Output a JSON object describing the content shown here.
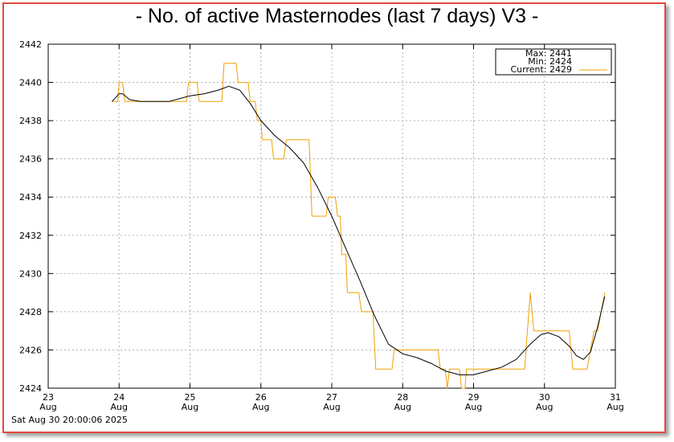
{
  "page": {
    "title": "- No. of active Masternodes (last 7 days) V3 -",
    "timestamp": "Sat Aug 30 20:00:06 2025"
  },
  "legend": {
    "max_label": "Max: 2441",
    "min_label": "Min: 2424",
    "current_label": "Current: 2429"
  },
  "colors": {
    "raw_line": "#f0a000",
    "smooth_line": "#000000",
    "frame_border": "#e0483e",
    "grid": "#b0b0b0"
  },
  "chart_data": {
    "type": "line",
    "title": "- No. of active Masternodes (last 7 days) V3 -",
    "xlabel": "",
    "ylabel": "",
    "xlim": [
      23,
      31
    ],
    "ylim": [
      2424,
      2442
    ],
    "grid": true,
    "legend_position": "top-right",
    "x_ticks": [
      {
        "value": 23,
        "day": "23",
        "month": "Aug"
      },
      {
        "value": 24,
        "day": "24",
        "month": "Aug"
      },
      {
        "value": 25,
        "day": "25",
        "month": "Aug"
      },
      {
        "value": 26,
        "day": "26",
        "month": "Aug"
      },
      {
        "value": 27,
        "day": "27",
        "month": "Aug"
      },
      {
        "value": 28,
        "day": "28",
        "month": "Aug"
      },
      {
        "value": 29,
        "day": "29",
        "month": "Aug"
      },
      {
        "value": 30,
        "day": "30",
        "month": "Aug"
      },
      {
        "value": 31,
        "day": "31",
        "month": "Aug"
      }
    ],
    "y_ticks": [
      2424,
      2426,
      2428,
      2430,
      2432,
      2434,
      2436,
      2438,
      2440,
      2442
    ],
    "series": [
      {
        "name": "Current",
        "points": [
          [
            23.9,
            2439
          ],
          [
            23.98,
            2439
          ],
          [
            24.0,
            2440
          ],
          [
            24.05,
            2440
          ],
          [
            24.08,
            2439
          ],
          [
            24.25,
            2439
          ],
          [
            24.5,
            2439
          ],
          [
            24.75,
            2439
          ],
          [
            24.95,
            2439
          ],
          [
            24.98,
            2440
          ],
          [
            25.1,
            2440
          ],
          [
            25.13,
            2439
          ],
          [
            25.45,
            2439
          ],
          [
            25.48,
            2441
          ],
          [
            25.65,
            2441
          ],
          [
            25.68,
            2440
          ],
          [
            25.82,
            2440
          ],
          [
            25.85,
            2439
          ],
          [
            25.92,
            2439
          ],
          [
            25.95,
            2438
          ],
          [
            26.0,
            2438
          ],
          [
            26.02,
            2437
          ],
          [
            26.15,
            2437
          ],
          [
            26.18,
            2436
          ],
          [
            26.32,
            2436
          ],
          [
            26.36,
            2437
          ],
          [
            26.68,
            2437
          ],
          [
            26.72,
            2433
          ],
          [
            26.92,
            2433
          ],
          [
            26.95,
            2434
          ],
          [
            27.05,
            2434
          ],
          [
            27.08,
            2433
          ],
          [
            27.12,
            2433
          ],
          [
            27.14,
            2431
          ],
          [
            27.2,
            2431
          ],
          [
            27.22,
            2429
          ],
          [
            27.38,
            2429
          ],
          [
            27.42,
            2428
          ],
          [
            27.58,
            2428
          ],
          [
            27.62,
            2425
          ],
          [
            27.85,
            2425
          ],
          [
            27.88,
            2426
          ],
          [
            28.5,
            2426
          ],
          [
            28.53,
            2425
          ],
          [
            28.6,
            2425
          ],
          [
            28.63,
            2424
          ],
          [
            28.66,
            2425
          ],
          [
            28.8,
            2425
          ],
          [
            28.83,
            2424
          ],
          [
            28.88,
            2424
          ],
          [
            28.9,
            2425
          ],
          [
            29.72,
            2425
          ],
          [
            29.8,
            2429
          ],
          [
            29.85,
            2427
          ],
          [
            30.35,
            2427
          ],
          [
            30.4,
            2425
          ],
          [
            30.6,
            2425
          ],
          [
            30.65,
            2426
          ],
          [
            30.7,
            2427
          ],
          [
            30.75,
            2427
          ],
          [
            30.85,
            2429
          ]
        ]
      },
      {
        "name": "",
        "points": [
          [
            23.9,
            2439
          ],
          [
            24.0,
            2439.4
          ],
          [
            24.05,
            2439.4
          ],
          [
            24.15,
            2439.1
          ],
          [
            24.3,
            2439
          ],
          [
            24.5,
            2439
          ],
          [
            24.7,
            2439
          ],
          [
            24.9,
            2439.2
          ],
          [
            25.0,
            2439.3
          ],
          [
            25.2,
            2439.4
          ],
          [
            25.4,
            2439.6
          ],
          [
            25.55,
            2439.8
          ],
          [
            25.7,
            2439.6
          ],
          [
            25.85,
            2438.9
          ],
          [
            26.0,
            2438
          ],
          [
            26.2,
            2437.2
          ],
          [
            26.4,
            2436.6
          ],
          [
            26.6,
            2435.8
          ],
          [
            26.8,
            2434.5
          ],
          [
            27.0,
            2433
          ],
          [
            27.2,
            2431.3
          ],
          [
            27.4,
            2429.6
          ],
          [
            27.6,
            2427.8
          ],
          [
            27.8,
            2426.3
          ],
          [
            28.0,
            2425.8
          ],
          [
            28.2,
            2425.6
          ],
          [
            28.4,
            2425.3
          ],
          [
            28.6,
            2424.9
          ],
          [
            28.8,
            2424.7
          ],
          [
            29.0,
            2424.7
          ],
          [
            29.2,
            2424.9
          ],
          [
            29.4,
            2425.1
          ],
          [
            29.6,
            2425.5
          ],
          [
            29.8,
            2426.3
          ],
          [
            29.95,
            2426.8
          ],
          [
            30.05,
            2426.9
          ],
          [
            30.2,
            2426.7
          ],
          [
            30.35,
            2426.2
          ],
          [
            30.45,
            2425.7
          ],
          [
            30.55,
            2425.5
          ],
          [
            30.65,
            2425.9
          ],
          [
            30.75,
            2427.2
          ],
          [
            30.85,
            2428.8
          ]
        ]
      }
    ]
  }
}
